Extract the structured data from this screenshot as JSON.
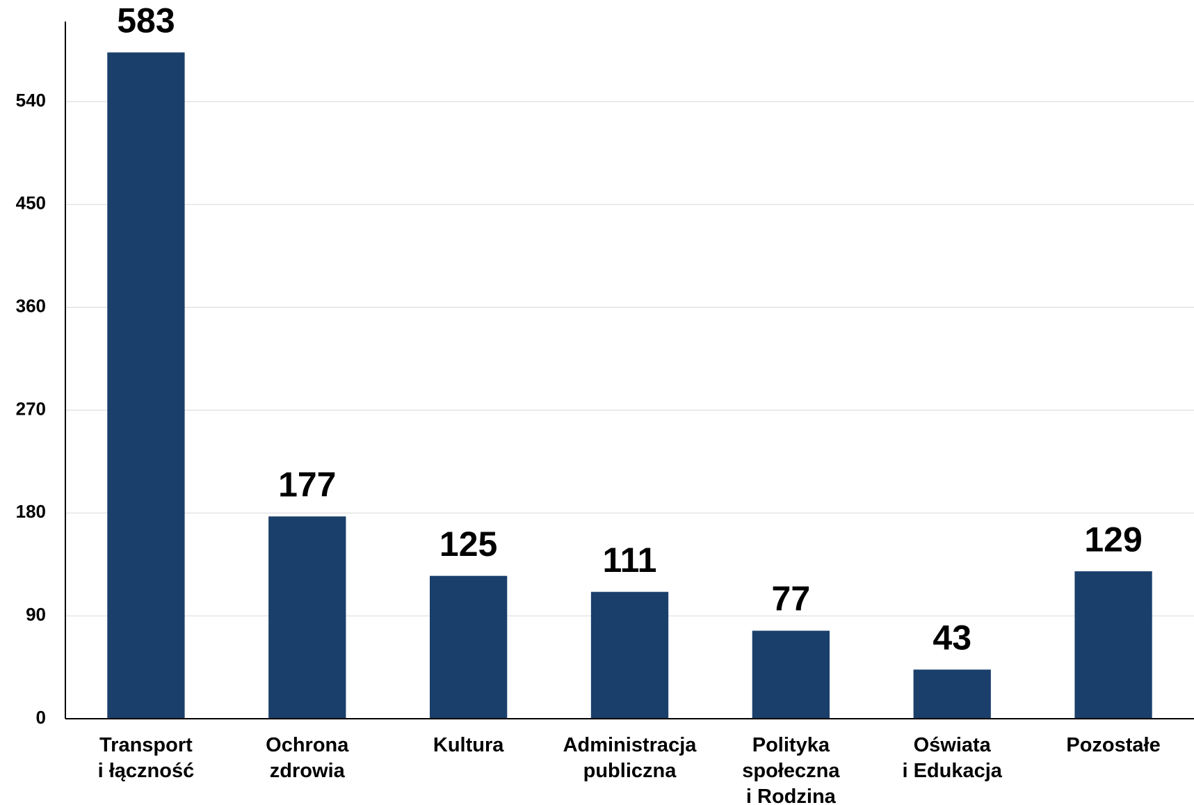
{
  "chart_data": {
    "type": "bar",
    "categories": [
      [
        "Transport",
        "i łączność"
      ],
      [
        "Ochrona",
        "zdrowia"
      ],
      [
        "Kultura"
      ],
      [
        "Administracja",
        "publiczna"
      ],
      [
        "Polityka",
        "społeczna",
        "i Rodzina"
      ],
      [
        "Oświata",
        "i Edukacja"
      ],
      [
        "Pozostałe"
      ]
    ],
    "values": [
      583,
      177,
      125,
      111,
      77,
      43,
      129
    ],
    "color": "#1b3f6b",
    "ylim": [
      0,
      610
    ],
    "yticks": [
      0,
      90,
      180,
      270,
      360,
      450,
      540
    ],
    "grid": true
  }
}
